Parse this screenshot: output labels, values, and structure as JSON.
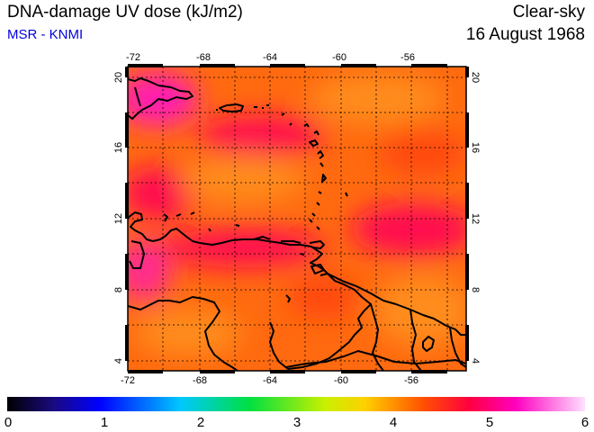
{
  "header": {
    "title": "DNA-damage UV dose (kJ/m2)",
    "subtitle": "MSR - KNMI",
    "sky_condition": "Clear-sky",
    "date": "16 August 1968"
  },
  "map": {
    "lon_ticks": [
      "-72",
      "-68",
      "-64",
      "-60",
      "-56"
    ],
    "lat_ticks": [
      "20",
      "16",
      "12",
      "8",
      "4"
    ],
    "lon_range": [
      -72,
      -53
    ],
    "lat_range": [
      3.5,
      20.5
    ],
    "region": "Caribbean Sea, Lesser Antilles and northern South America",
    "field_colors": [
      "#ff4a10",
      "#ff6a10",
      "#ff8c1a",
      "#ff1050",
      "#ff1ab0"
    ]
  },
  "colorbar": {
    "labels": [
      "0",
      "1",
      "2",
      "3",
      "4",
      "5",
      "6"
    ],
    "range": [
      0,
      6
    ]
  }
}
